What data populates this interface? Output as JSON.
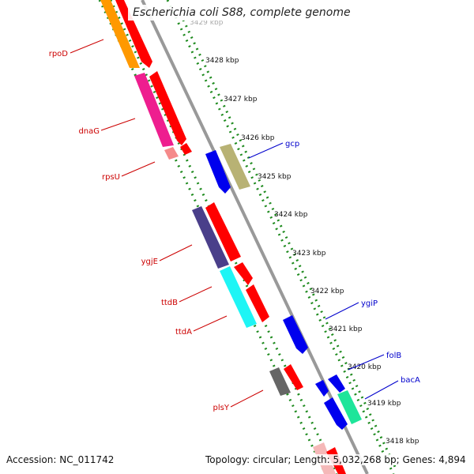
{
  "title": "Escherichia coli S88, complete genome",
  "footer": {
    "accession": "Accession: NC_011742",
    "topology": "Topology: circular; Length: 5,032,268 bp; Genes: 4,894"
  },
  "colors": {
    "backbone": "#9a9a9a",
    "ruler_dots": "#1e8a1e",
    "label_red": "#cc0000",
    "label_blue": "#0000cc",
    "forward_default": "#ff0000",
    "reverse_default": "#0000ee"
  },
  "ticks": [
    {
      "label": "3429 kbp"
    },
    {
      "label": "3428 kbp"
    },
    {
      "label": "3427 kbp"
    },
    {
      "label": "3426 kbp"
    },
    {
      "label": "3425 kbp"
    },
    {
      "label": "3424 kbp"
    },
    {
      "label": "3423 kbp"
    },
    {
      "label": "3422 kbp"
    },
    {
      "label": "3421 kbp"
    },
    {
      "label": "3420 kbp"
    },
    {
      "label": "3419 kbp"
    },
    {
      "label": "3418 kbp"
    }
  ],
  "gene_labels_left": [
    {
      "name": "rpoD"
    },
    {
      "name": "dnaG"
    },
    {
      "name": "rpsU"
    },
    {
      "name": "ygjE"
    },
    {
      "name": "ttdB"
    },
    {
      "name": "ttdA"
    },
    {
      "name": "plsY"
    }
  ],
  "gene_labels_right": [
    {
      "name": "gcp"
    },
    {
      "name": "ygiP"
    },
    {
      "name": "folB"
    },
    {
      "name": "bacA"
    }
  ]
}
